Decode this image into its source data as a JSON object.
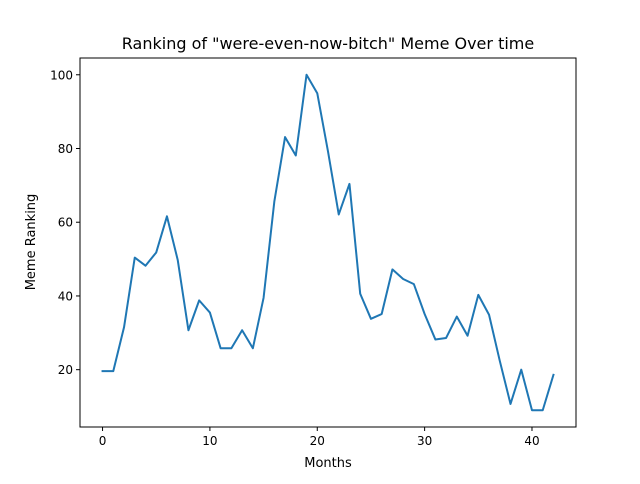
{
  "chart_data": {
    "type": "line",
    "title": "Ranking of \"were-even-now-bitch\" Meme Over time",
    "xlabel": "Months",
    "ylabel": "Meme Ranking",
    "xlim": [
      -2.1,
      44.1
    ],
    "ylim": [
      4.45,
      104.55
    ],
    "x_ticks": [
      0,
      10,
      20,
      30,
      40
    ],
    "y_ticks": [
      20,
      40,
      60,
      80,
      100
    ],
    "grid": false,
    "line_color": "#1f77b4",
    "x": [
      0,
      1,
      2,
      3,
      4,
      5,
      6,
      7,
      8,
      9,
      10,
      11,
      12,
      13,
      14,
      15,
      16,
      17,
      18,
      19,
      20,
      21,
      22,
      23,
      24,
      25,
      26,
      27,
      28,
      29,
      30,
      31,
      32,
      33,
      34,
      35,
      36,
      37,
      38,
      39,
      40,
      41,
      42
    ],
    "values": [
      19.6,
      19.6,
      31.5,
      50.4,
      48.2,
      51.8,
      61.6,
      49.8,
      30.7,
      38.8,
      35.5,
      25.8,
      25.8,
      30.7,
      25.8,
      39.5,
      65.6,
      83.1,
      78.1,
      100,
      95,
      79.2,
      62.1,
      70.4,
      40.6,
      33.8,
      35.1,
      47.2,
      44.6,
      43.2,
      35.1,
      28.2,
      28.6,
      34.4,
      29.2,
      40.3,
      34.9,
      22.4,
      10.7,
      20,
      9,
      9,
      18.6
    ]
  }
}
